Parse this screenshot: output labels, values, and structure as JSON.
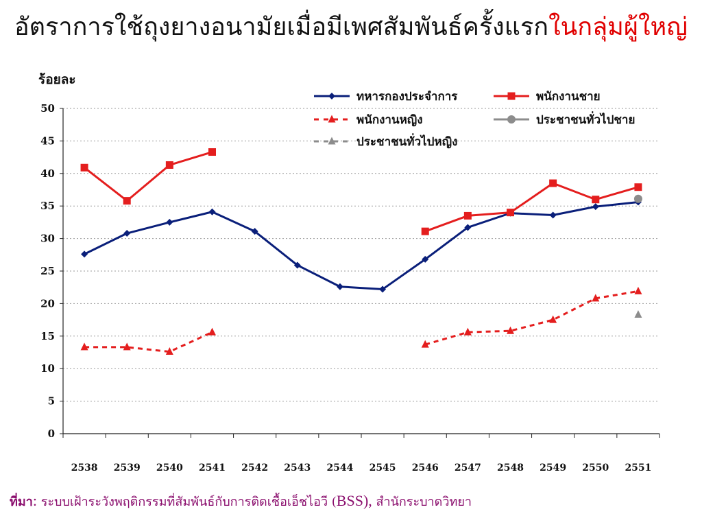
{
  "title": {
    "main": "อัตราการใช้ถุงยางอนามัยเมื่อมีเพศสัมพันธ์ครั้งแรก",
    "highlight": "ในกลุ่มผู้ใหญ่"
  },
  "colors": {
    "soldiers": "#0a1f7a",
    "male_workers": "#e41e1e",
    "female_workers": "#e41e1e",
    "general_male": "#8c8c8c",
    "general_female": "#8c8c8c",
    "title_highlight": "#e00000",
    "source_text": "#8b0f6e"
  },
  "source": {
    "label": "ที่มา",
    "colon": ":",
    "text_part1": " ระบบเฝ้าระวังพฤติกรรมที่สัมพันธ์กับการติดเชื้อเอ็ชไอวี (",
    "abbr": "BSS",
    "text_part2": "),",
    "org": " สำนักระบาดวิทยา"
  },
  "chart_data": {
    "type": "line",
    "ylabel": "ร้อยละ",
    "xlabel": "",
    "ylim": [
      0,
      50
    ],
    "yticks": [
      0,
      5,
      10,
      15,
      20,
      25,
      30,
      35,
      40,
      45,
      50
    ],
    "grid": true,
    "legend_position": "top-right",
    "categories": [
      "2538",
      "2539",
      "2540",
      "2541",
      "2542",
      "2543",
      "2544",
      "2545",
      "2546",
      "2547",
      "2548",
      "2549",
      "2550",
      "2551"
    ],
    "series": [
      {
        "name": "ทหารกองประจำการ",
        "color_key": "soldiers",
        "line": "solid",
        "marker": "diamond",
        "values": [
          27.6,
          30.8,
          32.5,
          34.1,
          31.1,
          25.9,
          22.6,
          22.2,
          26.8,
          31.7,
          33.9,
          33.6,
          34.9,
          35.6
        ]
      },
      {
        "name": "พนักงานชาย",
        "color_key": "male_workers",
        "line": "solid",
        "marker": "square",
        "values": [
          40.9,
          35.8,
          41.3,
          43.3,
          null,
          null,
          null,
          null,
          31.1,
          33.5,
          34.0,
          38.5,
          36.0,
          37.9
        ]
      },
      {
        "name": "พนักงานหญิง",
        "color_key": "female_workers",
        "line": "dashed",
        "marker": "triangle",
        "values": [
          13.3,
          13.3,
          12.6,
          15.6,
          null,
          null,
          null,
          null,
          13.7,
          15.6,
          15.8,
          17.5,
          20.8,
          21.9
        ]
      },
      {
        "name": "ประชาชนทั่วไปชาย",
        "color_key": "general_male",
        "line": "solid",
        "marker": "circle",
        "values": [
          null,
          null,
          null,
          null,
          null,
          null,
          null,
          null,
          null,
          null,
          null,
          null,
          null,
          36.1
        ]
      },
      {
        "name": "ประชาชนทั่วไปหญิง",
        "color_key": "general_female",
        "line": "dashed",
        "marker": "triangle",
        "values": [
          null,
          null,
          null,
          null,
          null,
          null,
          null,
          null,
          null,
          null,
          null,
          null,
          null,
          18.3
        ]
      }
    ]
  }
}
